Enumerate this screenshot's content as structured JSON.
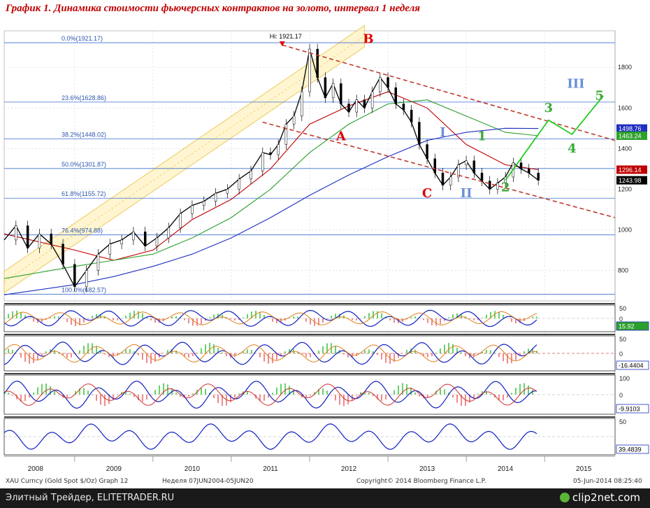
{
  "title": "График 1.   Динамика стоимости фьючерсных контрактов на золото, интервал 1 неделя",
  "footer": {
    "left": "Элитный Трейдер, ELITETRADER.RU",
    "logo": "clip2net.com"
  },
  "source_line": {
    "instrument": "XAU Curncy (Gold Spot   $/Oz) Graph 12",
    "period": "Неделя 07JUN2004-05JUN20",
    "copyright": "Copyright© 2014 Bloomberg Finance L.P.",
    "timestamp": "05-Jun-2014 08:25:40"
  },
  "chart_data": {
    "type": "line",
    "x_ticks": [
      "2008",
      "2009",
      "2010",
      "2011",
      "2012",
      "2013",
      "2014",
      "2015"
    ],
    "x_range": [
      2007.6,
      2015.4
    ],
    "y_ticks": [
      800,
      1000,
      1200,
      1400,
      1600,
      1800
    ],
    "ylim": [
      650,
      1980
    ],
    "price_series": {
      "name": "",
      "color": "#000000",
      "x": [
        2007.6,
        2007.75,
        2007.9,
        2008.05,
        2008.2,
        2008.35,
        2008.5,
        2008.65,
        2008.8,
        2008.95,
        2009.1,
        2009.25,
        2009.4,
        2009.55,
        2009.7,
        2009.85,
        2010.0,
        2010.15,
        2010.3,
        2010.45,
        2010.6,
        2010.75,
        2010.9,
        2011.0,
        2011.1,
        2011.2,
        2011.3,
        2011.4,
        2011.5,
        2011.6,
        2011.7,
        2011.8,
        2011.9,
        2012.0,
        2012.1,
        2012.2,
        2012.3,
        2012.4,
        2012.5,
        2012.6,
        2012.7,
        2012.8,
        2012.9,
        2013.0,
        2013.1,
        2013.2,
        2013.3,
        2013.4,
        2013.5,
        2013.6,
        2013.7,
        2013.8,
        2013.9,
        2014.0,
        2014.1,
        2014.2,
        2014.3,
        2014.42
      ],
      "y": [
        950,
        1020,
        910,
        980,
        930,
        830,
        720,
        800,
        880,
        930,
        950,
        990,
        920,
        960,
        1010,
        1080,
        1120,
        1140,
        1180,
        1200,
        1250,
        1290,
        1380,
        1370,
        1420,
        1520,
        1560,
        1680,
        1890,
        1750,
        1650,
        1720,
        1620,
        1580,
        1640,
        1600,
        1680,
        1750,
        1700,
        1620,
        1590,
        1530,
        1420,
        1350,
        1280,
        1220,
        1260,
        1320,
        1340,
        1280,
        1240,
        1200,
        1230,
        1260,
        1330,
        1300,
        1280,
        1244
      ]
    },
    "moving_averages": [
      {
        "name": "",
        "color": "#c00000",
        "x": [
          2007.6,
          2008.5,
          2009.0,
          2009.5,
          2010.0,
          2010.5,
          2011.0,
          2011.5,
          2012.0,
          2012.5,
          2013.0,
          2013.5,
          2014.0,
          2014.42
        ],
        "y": [
          980,
          900,
          850,
          900,
          1050,
          1150,
          1300,
          1520,
          1610,
          1680,
          1600,
          1420,
          1320,
          1296
        ]
      },
      {
        "name": "",
        "color": "#2ca02c",
        "x": [
          2007.6,
          2008.5,
          2009.0,
          2009.5,
          2010.0,
          2010.5,
          2011.0,
          2011.5,
          2012.0,
          2012.5,
          2013.0,
          2013.5,
          2014.0,
          2014.42
        ],
        "y": [
          760,
          820,
          850,
          880,
          960,
          1060,
          1200,
          1380,
          1520,
          1620,
          1640,
          1560,
          1480,
          1463
        ]
      },
      {
        "name": "",
        "color": "#1f2fbf",
        "x": [
          2007.6,
          2008.5,
          2009.0,
          2009.5,
          2010.0,
          2010.5,
          2011.0,
          2011.5,
          2012.0,
          2012.5,
          2013.0,
          2013.5,
          2014.0,
          2014.42
        ],
        "y": [
          680,
          730,
          770,
          820,
          880,
          960,
          1060,
          1170,
          1270,
          1360,
          1440,
          1480,
          1500,
          1499
        ]
      }
    ],
    "fibonacci_levels": [
      {
        "label": "0.0%(1921.17)",
        "value": 1921.17
      },
      {
        "label": "23.6%(1628.86)",
        "value": 1628.86
      },
      {
        "label": "38.2%(1448.02)",
        "value": 1448.02
      },
      {
        "label": "50.0%(1301.87)",
        "value": 1301.87
      },
      {
        "label": "61.8%(1155.72)",
        "value": 1155.72
      },
      {
        "label": "76.4%(974.88)",
        "value": 974.88
      },
      {
        "label": "100.0%(682.57)",
        "value": 682.57
      }
    ],
    "hi_label": {
      "text": "Hi: 1921.17",
      "x": 2011.15,
      "y": 1921.17
    },
    "price_badges": [
      {
        "text": "1498.76",
        "value": 1498.76,
        "color": "#1f2fbf"
      },
      {
        "text": "1463.24",
        "value": 1463.24,
        "color": "#2ca02c"
      },
      {
        "text": "1296.14",
        "value": 1296.14,
        "color": "#c00000"
      },
      {
        "text": "1243.98",
        "value": 1243.98,
        "color": "#000000"
      }
    ],
    "wave_labels": [
      {
        "text": "A",
        "x": 2011.9,
        "y": 1440,
        "color": "#e00000"
      },
      {
        "text": "B",
        "x": 2012.25,
        "y": 1920,
        "color": "#e00000"
      },
      {
        "text": "C",
        "x": 2013.0,
        "y": 1160,
        "color": "#e00000"
      },
      {
        "text": "I",
        "x": 2013.2,
        "y": 1460,
        "color": "#6a8fd8"
      },
      {
        "text": "II",
        "x": 2013.5,
        "y": 1160,
        "color": "#6a8fd8"
      },
      {
        "text": "III",
        "x": 2014.9,
        "y": 1700,
        "color": "#6a8fd8"
      },
      {
        "text": "1",
        "x": 2013.7,
        "y": 1440,
        "color": "#3aaa35"
      },
      {
        "text": "2",
        "x": 2014.0,
        "y": 1190,
        "color": "#3aaa35"
      },
      {
        "text": "3",
        "x": 2014.55,
        "y": 1580,
        "color": "#3aaa35"
      },
      {
        "text": "4",
        "x": 2014.85,
        "y": 1380,
        "color": "#3aaa35"
      },
      {
        "text": "5",
        "x": 2015.2,
        "y": 1640,
        "color": "#3aaa35"
      }
    ],
    "forecast_path": {
      "color": "#22cc22",
      "x": [
        2014.0,
        2014.55,
        2014.85,
        2015.25
      ],
      "y": [
        1244,
        1540,
        1470,
        1660
      ]
    },
    "channel": {
      "lower_start": [
        2007.6,
        690
      ],
      "lower_end": [
        2011.4,
        1690
      ],
      "upper_start": [
        2008.3,
        980
      ],
      "upper_end": [
        2012.2,
        1960
      ]
    },
    "downtrend_lines": [
      {
        "start": [
          2011.15,
          1910
        ],
        "end": [
          2015.4,
          1440
        ]
      },
      {
        "start": [
          2010.9,
          1530
        ],
        "end": [
          2015.4,
          1060
        ]
      }
    ],
    "indicator_panels": [
      {
        "badge": "15.92",
        "ticks": [
          50,
          0
        ]
      },
      {
        "badge": "-16.4404",
        "ticks": [
          50,
          0
        ]
      },
      {
        "badge": "-9.9103",
        "ticks": [
          100,
          0
        ]
      },
      {
        "badge": "39.4839",
        "ticks": [
          50
        ]
      }
    ]
  }
}
